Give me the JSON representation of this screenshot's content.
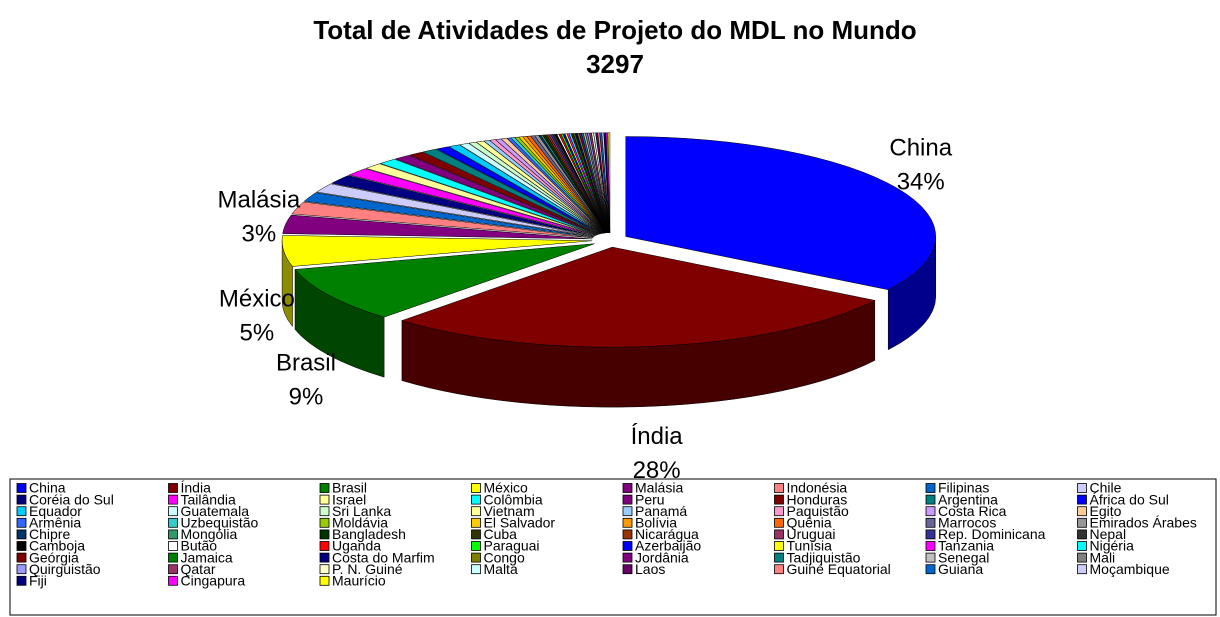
{
  "chart_data": {
    "type": "pie",
    "title": "Total de Atividades de Projeto do MDL no Mundo",
    "subtitle": "3297",
    "categories": [
      "China",
      "Índia",
      "Brasil",
      "México",
      "Malásia",
      "Indonésia",
      "Filipinas",
      "Chile",
      "Coréia do Sul",
      "Tailândia",
      "Israel",
      "Colômbia",
      "Peru",
      "Honduras",
      "Argentina",
      "África do Sul",
      "Equador",
      "Guatemala",
      "Sri Lanka",
      "Vietnam",
      "Panamá",
      "Paquistão",
      "Costa Rica",
      "Egito",
      "Armênia",
      "Uzbequistão",
      "Moldávia",
      "El Salvador",
      "Bolívia",
      "Quênia",
      "Marrocos",
      "Emirados Árabes",
      "Chipre",
      "Mongólia",
      "Bangladesh",
      "Cuba",
      "Nicarágua",
      "Uruguai",
      "Rep. Dominicana",
      "Nepal",
      "Camboja",
      "Butão",
      "Uganda",
      "Paraguai",
      "Azerbaijão",
      "Tunísia",
      "Tanzania",
      "Nigéria",
      "Geórgia",
      "Jamaica",
      "Costa do Marfim",
      "Congo",
      "Jordânia",
      "Tadjiquistão",
      "Senegal",
      "Mali",
      "Quirguistão",
      "Qatar",
      "P. N. Guiné",
      "Malta",
      "Laos",
      "Guiné Equatorial",
      "Guiana",
      "Moçambique",
      "Fiji",
      "Cingapura",
      "Maurício"
    ],
    "values": [
      34,
      28,
      9,
      5,
      3,
      2,
      1.5,
      1.5,
      1.5,
      1.3,
      1,
      1,
      0.9,
      0.8,
      0.8,
      0.7,
      0.6,
      0.5,
      0.4,
      0.4,
      0.3,
      0.3,
      0.3,
      0.3,
      0.2,
      0.2,
      0.2,
      0.2,
      0.2,
      0.2,
      0.2,
      0.2,
      0.1,
      0.1,
      0.1,
      0.1,
      0.1,
      0.1,
      0.1,
      0.1,
      0.1,
      0.1,
      0.1,
      0.1,
      0.1,
      0.1,
      0.1,
      0.1,
      0.1,
      0.1,
      0.1,
      0.1,
      0.1,
      0.1,
      0.1,
      0.1,
      0.1,
      0.1,
      0.1,
      0.1,
      0.1,
      0.1,
      0.1,
      0.1,
      0.1,
      0.1,
      0.1
    ],
    "value_labels": [
      "34%",
      "28%",
      "9%",
      "5%",
      "3%",
      null,
      null,
      null,
      null,
      null,
      null,
      null,
      null,
      null,
      null,
      null,
      null,
      null,
      null,
      null,
      null,
      null,
      null,
      null,
      null,
      null,
      null,
      null,
      null,
      null,
      null,
      null,
      null,
      null,
      null,
      null,
      null,
      null,
      null,
      null,
      null,
      null,
      null,
      null,
      null,
      null,
      null,
      null,
      null,
      null,
      null,
      null,
      null,
      null,
      null,
      null,
      null,
      null,
      null,
      null,
      null,
      null,
      null,
      null,
      null,
      null,
      null
    ],
    "colors": [
      "#0000ff",
      "#800000",
      "#008000",
      "#ffff00",
      "#800080",
      "#ff8080",
      "#0066cc",
      "#ccccff",
      "#000080",
      "#ff00ff",
      "#ffff99",
      "#00ffff",
      "#800080",
      "#800000",
      "#008080",
      "#0000ff",
      "#00ccff",
      "#ccffff",
      "#ccffcc",
      "#ffff99",
      "#99ccff",
      "#ff99cc",
      "#cc99ff",
      "#ffcc99",
      "#3366ff",
      "#33cccc",
      "#99cc00",
      "#ffcc00",
      "#ff9900",
      "#ff6600",
      "#666699",
      "#969696",
      "#003366",
      "#339966",
      "#003300",
      "#333300",
      "#993300",
      "#993366",
      "#333399",
      "#333333",
      "#000000",
      "#ffffff",
      "#ff0000",
      "#00ff00",
      "#0000ff",
      "#ffff00",
      "#ff00ff",
      "#00ffff",
      "#800000",
      "#008000",
      "#000080",
      "#808000",
      "#800080",
      "#008080",
      "#c0c0c0",
      "#808080",
      "#9999ff",
      "#993366",
      "#ffffcc",
      "#ccffff",
      "#660066",
      "#ff8080",
      "#0066cc",
      "#ccccff",
      "#000080",
      "#ff00ff",
      "#ffff00"
    ],
    "legend": "bottom"
  }
}
